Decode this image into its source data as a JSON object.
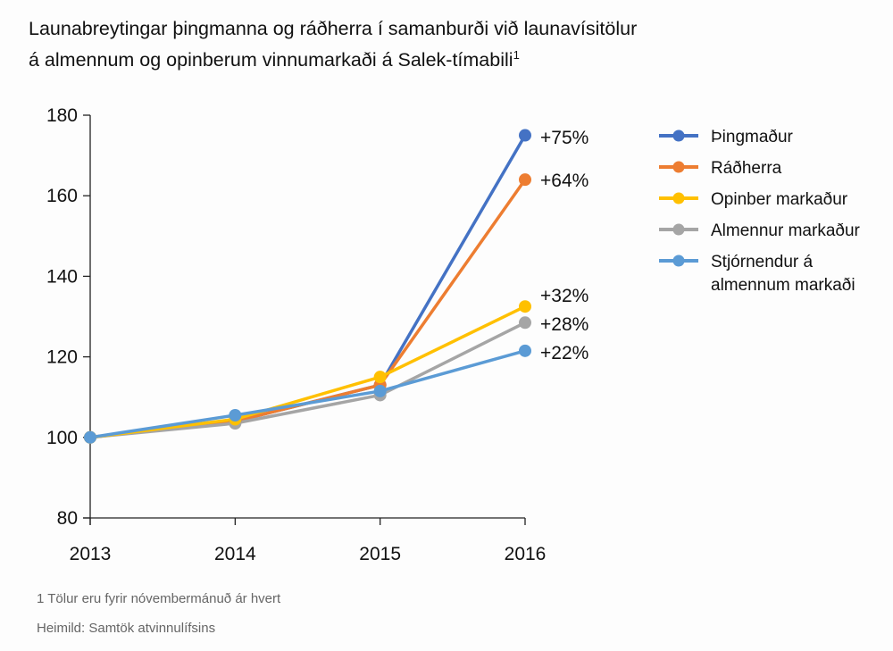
{
  "chart_data": {
    "type": "line",
    "title": "Launabreytingar þingmanna og ráðherra í samanburði við launavísitölur á almennum og opinberum vinnumarkaði á Salek-tímabili",
    "title_line1": "Launabreytingar þingmanna og ráðherra í samanburði við launavísitölur",
    "title_line2": "á almennum og opinberum vinnumarkaði á Salek-tímabili",
    "title_footnote_mark": "1",
    "xlabel": "",
    "ylabel": "",
    "x": [
      "2013",
      "2014",
      "2015",
      "2016"
    ],
    "ylim": [
      80,
      180
    ],
    "yticks": [
      "80",
      "100",
      "120",
      "140",
      "160",
      "180"
    ],
    "ytick_values": [
      80,
      100,
      120,
      140,
      160,
      180
    ],
    "grid": false,
    "legend_position": "right",
    "series": [
      {
        "name": "Þingmaður",
        "color": "#4472C4",
        "values": [
          100,
          104,
          113,
          175
        ],
        "end_label": "+75%"
      },
      {
        "name": "Ráðherra",
        "color": "#ED7D31",
        "values": [
          100,
          104,
          113,
          164
        ],
        "end_label": "+64%"
      },
      {
        "name": "Opinber markaður",
        "color": "#FFC000",
        "values": [
          100,
          104.5,
          115,
          132.5
        ],
        "end_label": "+32%"
      },
      {
        "name": "Almennur markaður",
        "color": "#A5A5A5",
        "values": [
          100,
          103.5,
          110.5,
          128.5
        ],
        "end_label": "+28%"
      },
      {
        "name": "Stjórnendur á almennum markaði",
        "legend_line1": "Stjórnendur á",
        "legend_line2": "almennum markaði",
        "color": "#5B9BD5",
        "values": [
          100,
          105.5,
          111.5,
          121.5
        ],
        "end_label": "+22%"
      }
    ]
  },
  "footnotes": {
    "note": "1 Tölur eru fyrir nóvembermánuð ár hvert",
    "source": "Heimild: Samtök atvinnulífsins"
  }
}
